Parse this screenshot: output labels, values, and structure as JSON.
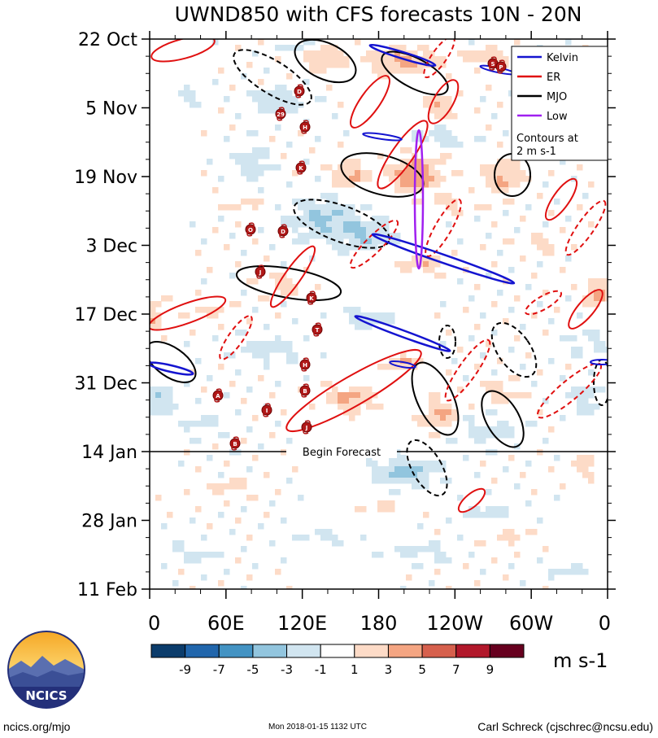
{
  "chart_data": {
    "type": "heatmap",
    "title": "UWND850 with CFS forecasts  10N - 20N",
    "y_ticks": [
      "22 Oct",
      "5 Nov",
      "19 Nov",
      "3 Dec",
      "17 Dec",
      "31 Dec",
      "14 Jan",
      "28 Jan",
      "11 Feb"
    ],
    "x_ticks": [
      "0",
      "60E",
      "120E",
      "180",
      "120W",
      "60W",
      "0"
    ],
    "x_range": [
      0,
      360
    ],
    "time_range": [
      "22 Oct",
      "11 Feb"
    ],
    "forecast_start": "14 Jan",
    "forecast_label": "Begin Forecast",
    "colorbar": {
      "labels": [
        "-9",
        "-7",
        "-5",
        "-3",
        "-1",
        "1",
        "3",
        "5",
        "7",
        "9"
      ],
      "colors": [
        "#0b3c6b",
        "#2166ac",
        "#4393c3",
        "#92c5de",
        "#d1e5f0",
        "#ffffff",
        "#fddbc7",
        "#f4a582",
        "#d6604d",
        "#b2182b",
        "#67001f"
      ],
      "units": "m s-1"
    },
    "legend": [
      {
        "label": "Kelvin",
        "color": "#1414d0"
      },
      {
        "label": "ER",
        "color": "#e01010"
      },
      {
        "label": "MJO",
        "color": "#000000"
      },
      {
        "label": "Low",
        "color": "#a020f0"
      }
    ],
    "legend_note": [
      "Contours at",
      "2 m s-1"
    ],
    "storm_markers": [
      "D",
      "29",
      "H",
      "K",
      "O",
      "D",
      "J",
      "K",
      "T",
      "H",
      "B",
      "A",
      "I",
      "J",
      "B",
      "S",
      "P"
    ]
  },
  "logo": {
    "text": "NCICS"
  },
  "footer": {
    "left": "ncics.org/mjo",
    "middle": "Mon 2018-01-15 1132 UTC",
    "right": "Carl Schreck (cjschrec@ncsu.edu)"
  }
}
